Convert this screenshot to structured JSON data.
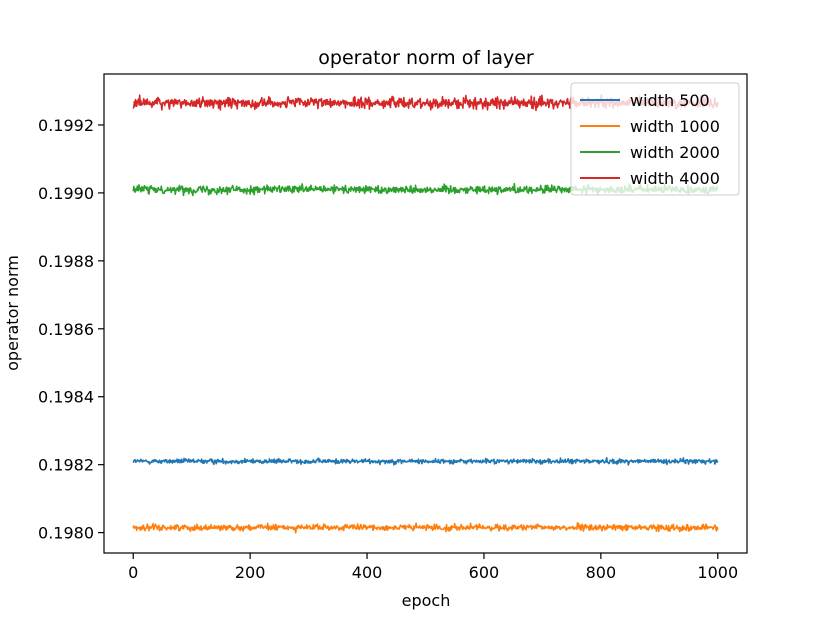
{
  "chart_data": {
    "type": "line",
    "title": "operator norm of layer",
    "xlabel": "epoch",
    "ylabel": "operator norm",
    "xlim": [
      -50,
      1050
    ],
    "ylim": [
      0.19794,
      0.19935
    ],
    "x_ticks": [
      0,
      200,
      400,
      600,
      800,
      1000
    ],
    "y_ticks": [
      0.198,
      0.1982,
      0.1984,
      0.1986,
      0.1988,
      0.199,
      0.1992
    ],
    "x_tick_labels": [
      "0",
      "200",
      "400",
      "600",
      "800",
      "1000"
    ],
    "y_tick_labels": [
      "0.1980",
      "0.1982",
      "0.1984",
      "0.1986",
      "0.1988",
      "0.1990",
      "0.1992"
    ],
    "legend_position": "top-right",
    "grid": false,
    "x": {
      "start": 0,
      "end": 1000,
      "count": 1001
    },
    "series": [
      {
        "name": "width 500",
        "color": "#1f77b4",
        "mean": 0.19821,
        "noise": 3.5e-06
      },
      {
        "name": "width 1000",
        "color": "#ff7f0e",
        "mean": 0.198015,
        "noise": 4.5e-06
      },
      {
        "name": "width 2000",
        "color": "#2ca02c",
        "mean": 0.19901,
        "noise": 6e-06
      },
      {
        "name": "width 4000",
        "color": "#d62728",
        "mean": 0.199265,
        "noise": 8e-06
      }
    ]
  }
}
